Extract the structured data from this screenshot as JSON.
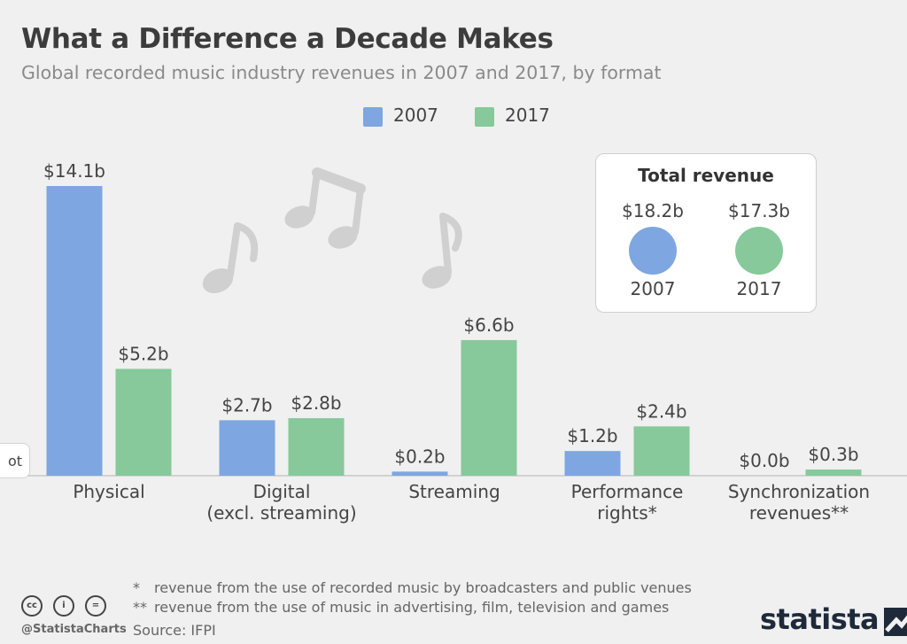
{
  "header": {
    "title": "What a Difference a Decade Makes",
    "subtitle": "Global recorded music industry revenues in 2007 and 2017, by format"
  },
  "legend": {
    "items": [
      {
        "label": "2007",
        "color": "#7ea6e0"
      },
      {
        "label": "2017",
        "color": "#87c99a"
      }
    ]
  },
  "chart_data": {
    "type": "bar",
    "categories": [
      [
        "Physical"
      ],
      [
        "Digital",
        "(excl. streaming)"
      ],
      [
        "Streaming"
      ],
      [
        "Performance",
        "rights*"
      ],
      [
        "Synchronization",
        "revenues**"
      ]
    ],
    "series": [
      {
        "name": "2007",
        "color": "#7ea6e0",
        "values": [
          14.1,
          2.7,
          0.2,
          1.2,
          0.0
        ],
        "labels": [
          "$14.1b",
          "$2.7b",
          "$0.2b",
          "$1.2b",
          "$0.0b"
        ]
      },
      {
        "name": "2017",
        "color": "#87c99a",
        "values": [
          5.2,
          2.8,
          6.6,
          2.4,
          0.3
        ],
        "labels": [
          "$5.2b",
          "$2.8b",
          "$6.6b",
          "$2.4b",
          "$0.3b"
        ]
      }
    ],
    "ylim": [
      0,
      14.1
    ],
    "grid": false,
    "legend_position": "top-center"
  },
  "total_revenue": {
    "title": "Total revenue",
    "items": [
      {
        "value": "$18.2b",
        "year": "2007",
        "color": "#7ea6e0"
      },
      {
        "value": "$17.3b",
        "year": "2017",
        "color": "#87c99a"
      }
    ]
  },
  "side_tab": {
    "label": "ot"
  },
  "footnotes": [
    {
      "mark": "*",
      "text": "revenue from the use of recorded music by broadcasters and public venues"
    },
    {
      "mark": "**",
      "text": "revenue from the use of music in advertising, film, television and games"
    }
  ],
  "footer": {
    "handle": "@StatistaCharts",
    "source": "Source: IFPI",
    "brand": "statista",
    "cc_icons": [
      {
        "name": "cc-icon",
        "glyph": "cc"
      },
      {
        "name": "attribution-icon",
        "glyph": "i"
      },
      {
        "name": "no-derivatives-icon",
        "glyph": "="
      }
    ]
  }
}
